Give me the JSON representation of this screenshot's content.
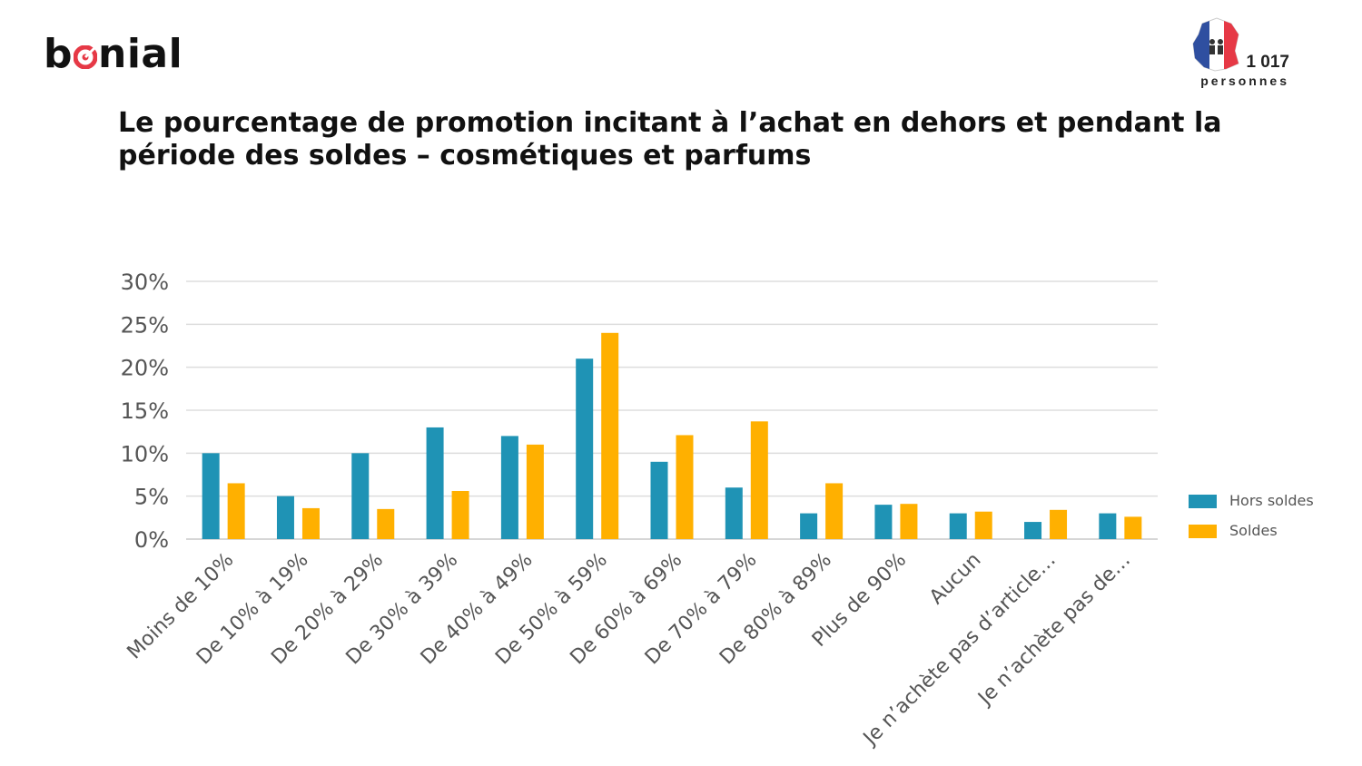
{
  "brand": {
    "logo_text_left": "b",
    "logo_text_right": "nial",
    "accent": "#e63946"
  },
  "respondents": {
    "count": "1 017",
    "unit": "personnes",
    "flag_colors": [
      "#2f4fa0",
      "#ffffff",
      "#e63946"
    ]
  },
  "chart_data": {
    "type": "bar",
    "title": "Le pourcentage de promotion incitant à l’achat en dehors et pendant la période des soldes – cosmétiques et parfums",
    "categories": [
      "Moins de 10%",
      "De 10% à 19%",
      "De 20% à 29%",
      "De 30% à 39%",
      "De 40% à 49%",
      "De 50% à 59%",
      "De 60% à 69%",
      "De 70% à 79%",
      "De 80% à 89%",
      "Plus de 90%",
      "Aucun",
      "Je n’achète pas d’article…",
      "Je n’achète pas de…"
    ],
    "series": [
      {
        "name": "Hors soldes",
        "color": "#1f93b5",
        "values": [
          10,
          5,
          10,
          13,
          12,
          21,
          9,
          6,
          3,
          4,
          3,
          2,
          3
        ]
      },
      {
        "name": "Soldes",
        "color": "#ffb000",
        "values": [
          6.5,
          3.6,
          3.5,
          5.6,
          11,
          24,
          12.1,
          13.7,
          6.5,
          4.1,
          3.2,
          3.4,
          2.6
        ]
      }
    ],
    "yticks": [
      "0%",
      "5%",
      "10%",
      "15%",
      "20%",
      "25%",
      "30%"
    ],
    "ylim": [
      0,
      30
    ],
    "grid": true,
    "legend_position": "right"
  }
}
